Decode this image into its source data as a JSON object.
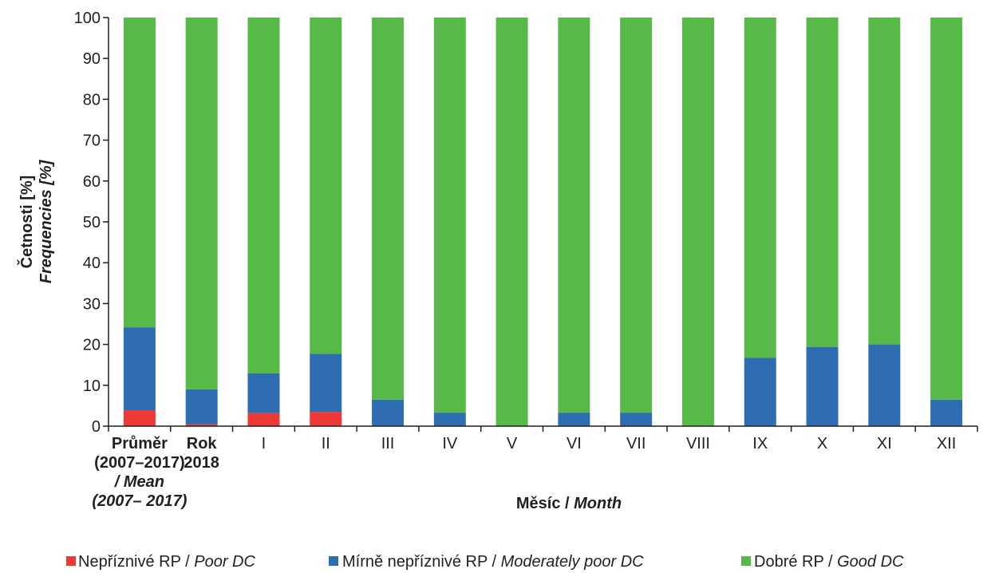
{
  "chart_data": {
    "type": "bar",
    "stacked": true,
    "category_lines": [
      [
        "Průměr",
        "(2007–2017)",
        "/ Mean",
        "(2007– 2017)"
      ],
      [
        "Rok",
        "2018"
      ],
      [
        "I"
      ],
      [
        "II"
      ],
      [
        "III"
      ],
      [
        "IV"
      ],
      [
        "V"
      ],
      [
        "VI"
      ],
      [
        "VII"
      ],
      [
        "VIII"
      ],
      [
        "IX"
      ],
      [
        "X"
      ],
      [
        "XI"
      ],
      [
        "XII"
      ]
    ],
    "series": [
      {
        "name": "Nepříznivé RP / Poor DC",
        "name_plain": "Nepříznivé RP / ",
        "name_italic": "Poor DC",
        "color": "#ee3a37",
        "values": [
          3.9,
          0.5,
          3.2,
          3.5,
          0,
          0,
          0,
          0,
          0,
          0,
          0,
          0,
          0,
          0
        ]
      },
      {
        "name": "Mírně nepříznivé RP / Moderately poor DC",
        "name_plain": "Mírně nepříznivé RP / ",
        "name_italic": "Moderately poor DC",
        "color": "#2f6db3",
        "values": [
          20.3,
          8.5,
          9.7,
          14.2,
          6.5,
          3.3,
          0,
          3.3,
          3.3,
          0,
          16.7,
          19.4,
          20.0,
          6.5
        ]
      },
      {
        "name": "Dobré RP / Good DC",
        "name_plain": "Dobré RP / ",
        "name_italic": "Good DC",
        "color": "#57b947",
        "values": [
          75.8,
          91.0,
          87.1,
          82.3,
          93.5,
          96.7,
          100,
          96.7,
          96.7,
          100,
          83.3,
          80.6,
          80.0,
          93.5
        ]
      }
    ],
    "ylim": [
      0,
      100
    ],
    "yticks": [
      0,
      10,
      20,
      30,
      40,
      50,
      60,
      70,
      80,
      90,
      100
    ],
    "ylabel": {
      "line1": "Četnosti [%]",
      "line2": "Frequencies [%]"
    },
    "xlabel": {
      "plain": "Měsíc / ",
      "italic": "Month"
    },
    "grid": false,
    "legend_position": "bottom"
  }
}
